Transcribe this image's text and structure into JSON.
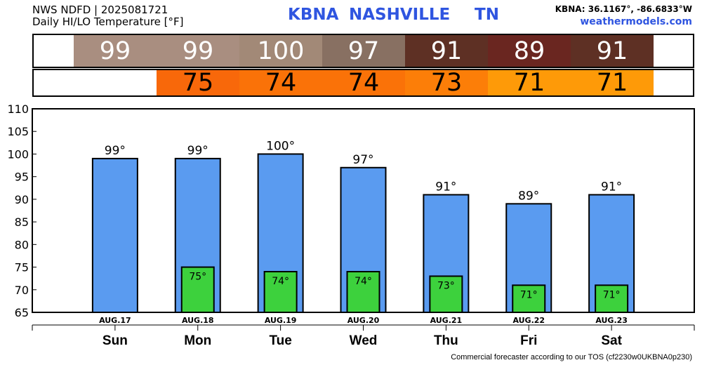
{
  "header": {
    "line1": "NWS NDFD | 2025081721",
    "line2": "Daily HI/LO Temperature [°F]",
    "station": "KBNA",
    "city": "NASHVILLE",
    "state": "TN",
    "coords": "KBNA: 36.1167°, -86.6833°W",
    "site": "weathermodels.com"
  },
  "footer": "Commercial forecaster according to our TOS (cf2230w0UKBNA0p230)",
  "strips": {
    "hi": [
      {
        "label": "99",
        "color": "#a98e80"
      },
      {
        "label": "99",
        "color": "#a98e80"
      },
      {
        "label": "100",
        "color": "#a28977"
      },
      {
        "label": "97",
        "color": "#887062"
      },
      {
        "label": "91",
        "color": "#5e3024"
      },
      {
        "label": "89",
        "color": "#6a2620"
      },
      {
        "label": "91",
        "color": "#5e3024"
      }
    ],
    "lo": [
      {
        "label": "75",
        "color": "#f8680a"
      },
      {
        "label": "74",
        "color": "#fa7208"
      },
      {
        "label": "74",
        "color": "#fa7208"
      },
      {
        "label": "73",
        "color": "#fc7e08"
      },
      {
        "label": "71",
        "color": "#fe9a08"
      },
      {
        "label": "71",
        "color": "#fe9a08"
      }
    ]
  },
  "chart_data": {
    "type": "bar",
    "ylim": [
      65,
      110
    ],
    "yticks": [
      65,
      70,
      75,
      80,
      85,
      90,
      95,
      100,
      105,
      110
    ],
    "categories": [
      "AUG.17",
      "AUG.18",
      "AUG.19",
      "AUG.20",
      "AUG.21",
      "AUG.22",
      "AUG.23"
    ],
    "days": [
      "Sun",
      "Mon",
      "Tue",
      "Wed",
      "Thu",
      "Fri",
      "Sat"
    ],
    "series": [
      {
        "values": [
          99,
          99,
          100,
          97,
          91,
          89,
          91
        ],
        "labels": [
          "99°",
          "99°",
          "100°",
          "97°",
          "91°",
          "89°",
          "91°"
        ],
        "color": "#5a9bf0"
      },
      {
        "values": [
          null,
          75,
          74,
          74,
          73,
          71,
          71
        ],
        "labels": [
          "",
          "75°",
          "74°",
          "74°",
          "73°",
          "71°",
          "71°"
        ],
        "color": "#3dd13d"
      }
    ]
  }
}
